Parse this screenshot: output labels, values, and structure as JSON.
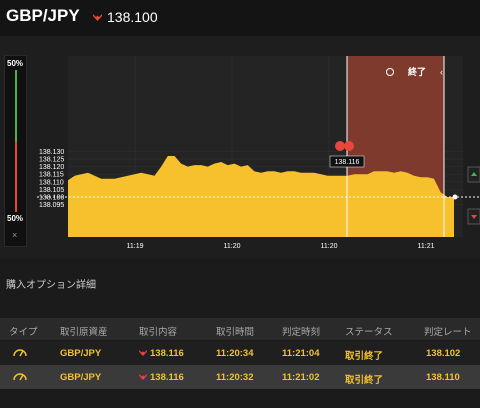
{
  "header": {
    "pair": "GBP/JPY",
    "rate": "138.100",
    "direction_icon": "down-arrow-icon",
    "direction_color": "#e8473b"
  },
  "sidebar": {
    "top_pct": "50%",
    "bottom_pct": "50%",
    "close": "×",
    "up_color": "#4caf50",
    "down_color": "#e8473b"
  },
  "chart_data": {
    "type": "area",
    "ylim": [
      138.09,
      138.135
    ],
    "y_ticks": [
      "138.130",
      "138.125",
      "138.120",
      "138.115",
      "138.110",
      "138.105",
      "138.100",
      "138.095"
    ],
    "x_ticks": [
      "11:19",
      "11:20",
      "11:20",
      "11:21"
    ],
    "fill_color": "#f6c12c",
    "current_price": "138.100",
    "entry_label": "138.116",
    "end_label": "終了",
    "series": [
      {
        "values": [
          138.111,
          138.114,
          138.115,
          138.116,
          138.114,
          138.112,
          138.112,
          138.112,
          138.113,
          138.114,
          138.115,
          138.116,
          138.115,
          138.114,
          138.12,
          138.127,
          138.127,
          138.122,
          138.12,
          138.121,
          138.121,
          138.12,
          138.122,
          138.123,
          138.121,
          138.122,
          138.12,
          138.121,
          138.117,
          138.116,
          138.117,
          138.117,
          138.116,
          138.117,
          138.117,
          138.116,
          138.116,
          138.116,
          138.115,
          138.114,
          138.114,
          138.114,
          138.114,
          138.115,
          138.115,
          138.115,
          138.117,
          138.117,
          138.117,
          138.116,
          138.117,
          138.116,
          138.114,
          138.113,
          138.113,
          138.112,
          138.103,
          138.1,
          138.1
        ]
      }
    ]
  },
  "details": {
    "title": "購入オプション詳細",
    "columns": [
      "タイプ",
      "取引原資産",
      "取引内容",
      "取引時間",
      "判定時刻",
      "ステータス",
      "判定レート"
    ],
    "rows": [
      {
        "asset": "GBP/JPY",
        "content": "138.116",
        "time": "11:20:34",
        "judge_time": "11:21:04",
        "status": "取引終了",
        "rate": "138.102"
      },
      {
        "asset": "GBP/JPY",
        "content": "138.116",
        "time": "11:20:32",
        "judge_time": "11:21:02",
        "status": "取引終了",
        "rate": "138.110"
      }
    ]
  }
}
